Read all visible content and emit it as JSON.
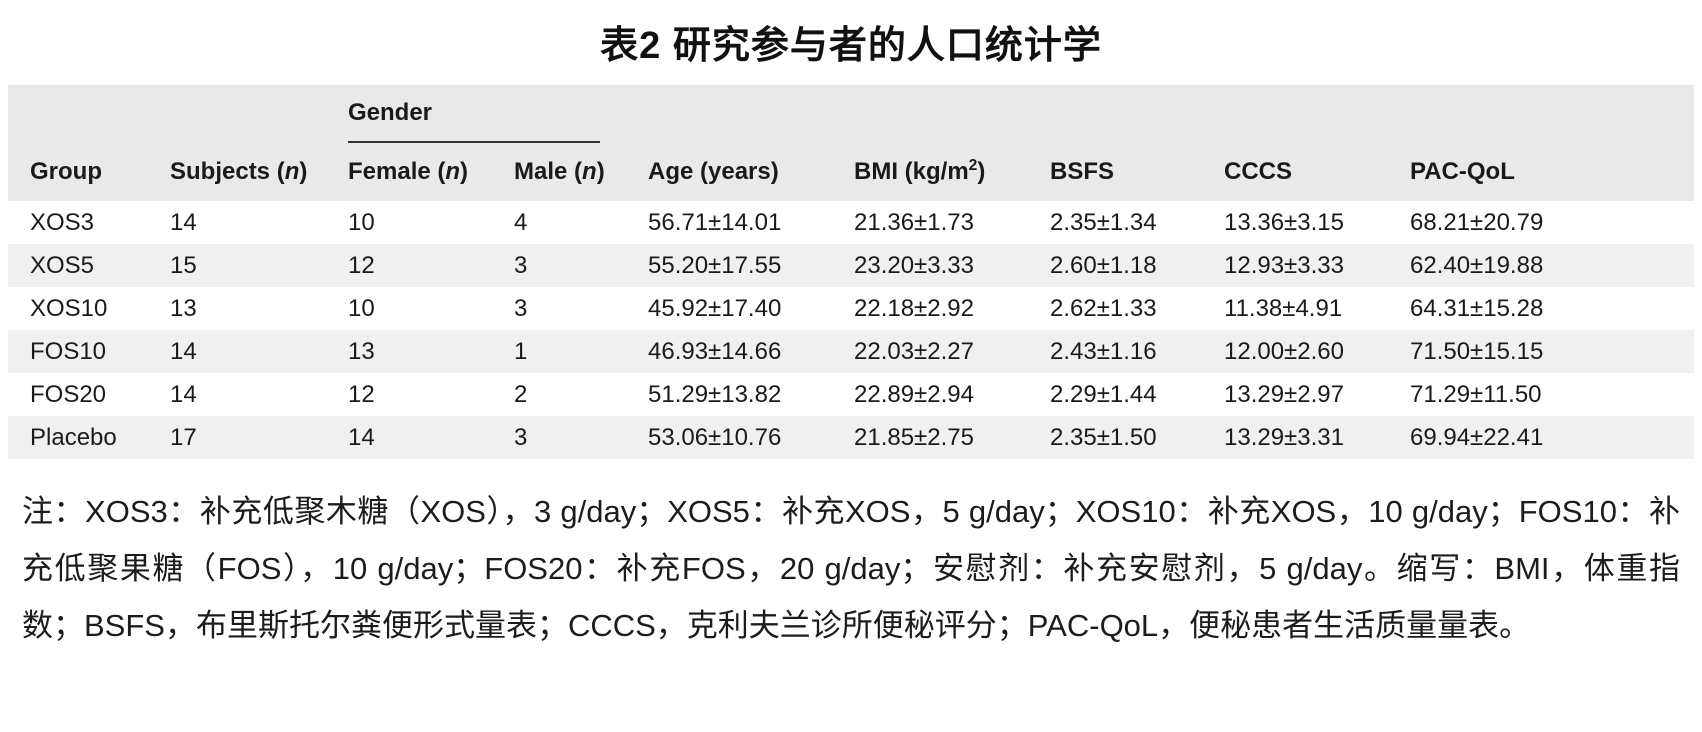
{
  "title": "表2 研究参与者的人口统计学",
  "table": {
    "gender_group_header": "Gender",
    "columns": [
      "Group",
      "Subjects (*n*)",
      "Female (*n*)",
      "Male (*n*)",
      "Age (years)",
      "BMI (kg/m^2^)",
      "BSFS",
      "CCCS",
      "PAC-QoL"
    ],
    "rows": [
      [
        "XOS3",
        "14",
        "10",
        "4",
        "56.71±14.01",
        "21.36±1.73",
        "2.35±1.34",
        "13.36±3.15",
        "68.21±20.79"
      ],
      [
        "XOS5",
        "15",
        "12",
        "3",
        "55.20±17.55",
        "23.20±3.33",
        "2.60±1.18",
        "12.93±3.33",
        "62.40±19.88"
      ],
      [
        "XOS10",
        "13",
        "10",
        "3",
        "45.92±17.40",
        "22.18±2.92",
        "2.62±1.33",
        "11.38±4.91",
        "64.31±15.28"
      ],
      [
        "FOS10",
        "14",
        "13",
        "1",
        "46.93±14.66",
        "22.03±2.27",
        "2.43±1.16",
        "12.00±2.60",
        "71.50±15.15"
      ],
      [
        "FOS20",
        "14",
        "12",
        "2",
        "51.29±13.82",
        "22.89±2.94",
        "2.29±1.44",
        "13.29±2.97",
        "71.29±11.50"
      ],
      [
        "Placebo",
        "17",
        "14",
        "3",
        "53.06±10.76",
        "21.85±2.75",
        "2.35±1.50",
        "13.29±3.31",
        "69.94±22.41"
      ]
    ]
  },
  "footnote": "注：XOS3：补充低聚木糖（XOS），3 g/day；XOS5：补充XOS，5 g/day；XOS10：补充XOS，10 g/day；FOS10：补充低聚果糖（FOS），10 g/day；FOS20：补充FOS，20 g/day；安慰剂：补充安慰剂，5 g/day。缩写：BMI，体重指数；BSFS，布里斯托尔粪便形式量表；CCCS，克利夫兰诊所便秘评分；PAC-QoL，便秘患者生活质量量表。"
}
